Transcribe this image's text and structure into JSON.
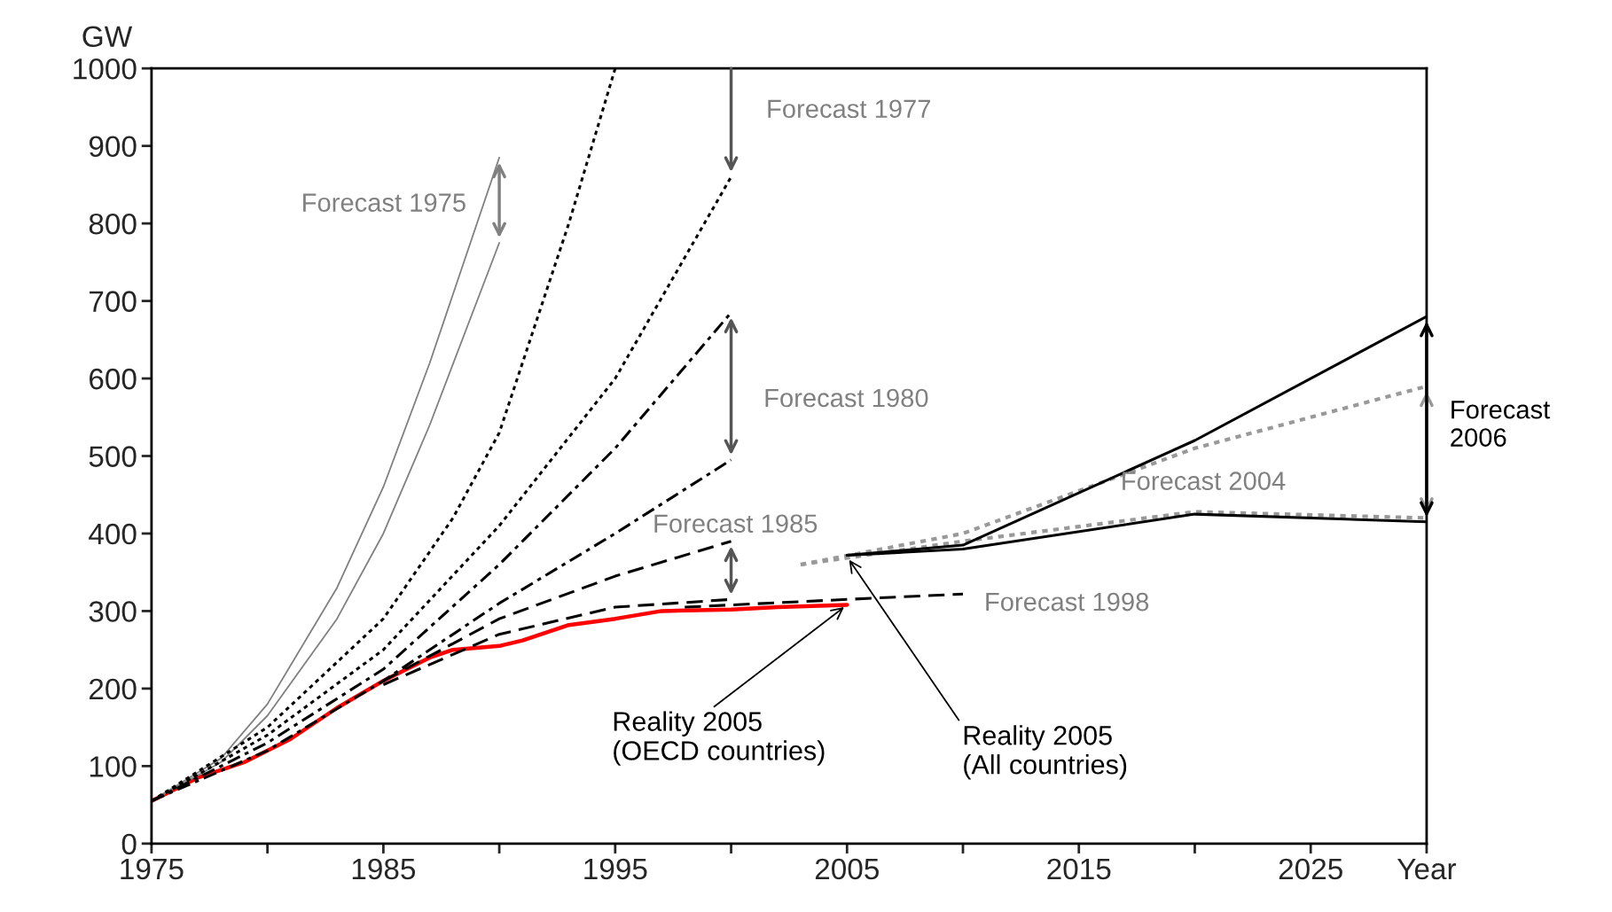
{
  "chart_data": {
    "type": "line",
    "ylabel": "GW",
    "xlim": [
      1975,
      2030
    ],
    "xticks": [
      1975,
      {
        "value": 1980,
        "label": null
      },
      1985,
      {
        "value": 1990,
        "label": null
      },
      1995,
      {
        "value": 2000,
        "label": null
      },
      2005,
      {
        "value": 2010,
        "label": null
      },
      2015,
      {
        "value": 2020,
        "label": null
      },
      2025,
      {
        "value": 2030,
        "label": "Year"
      }
    ],
    "ylim": [
      0,
      1000
    ],
    "yticks": [
      0,
      100,
      200,
      300,
      400,
      500,
      600,
      700,
      800,
      900,
      1000
    ],
    "grid": false,
    "series": [
      {
        "color": "#ff0000",
        "line_style": "solid",
        "x": [
          1975,
          1977,
          1979,
          1981,
          1983,
          1985,
          1987,
          1988,
          1990,
          1991,
          1993,
          1995,
          1997,
          2000,
          2002,
          2005
        ],
        "values": [
          55,
          85,
          105,
          135,
          175,
          210,
          240,
          250,
          255,
          262,
          282,
          290,
          300,
          302,
          305,
          308
        ]
      },
      {
        "color": "#808080",
        "line_style": "solid",
        "x": [
          1975,
          1978,
          1980,
          1983,
          1985,
          1987,
          1990
        ],
        "values": [
          55,
          110,
          180,
          330,
          460,
          620,
          885
        ]
      },
      {
        "color": "#808080",
        "line_style": "solid",
        "x": [
          1975,
          1978,
          1980,
          1983,
          1985,
          1987,
          1990
        ],
        "values": [
          55,
          105,
          165,
          290,
          400,
          540,
          775
        ]
      },
      {
        "color": "#000000",
        "line_style": "dotted",
        "x": [
          1975,
          1980,
          1985,
          1988,
          1990,
          1993,
          1995
        ],
        "values": [
          55,
          150,
          290,
          420,
          530,
          800,
          1000
        ]
      },
      {
        "color": "#000000",
        "line_style": "dotted",
        "x": [
          1975,
          1980,
          1985,
          1990,
          1995,
          2000
        ],
        "values": [
          55,
          140,
          250,
          410,
          600,
          860
        ]
      },
      {
        "color": "#000000",
        "line_style": "dashdot",
        "x": [
          1975,
          1980,
          1985,
          1990,
          1995,
          2000
        ],
        "values": [
          55,
          130,
          225,
          360,
          510,
          685
        ]
      },
      {
        "color": "#000000",
        "line_style": "dashdot",
        "x": [
          1975,
          1980,
          1985,
          1990,
          1995,
          2000
        ],
        "values": [
          55,
          120,
          210,
          310,
          400,
          495
        ]
      },
      {
        "color": "#000000",
        "line_style": "dashed",
        "x": [
          1985,
          1990,
          1995,
          2000
        ],
        "values": [
          210,
          290,
          345,
          390
        ]
      },
      {
        "color": "#000000",
        "line_style": "dashed",
        "x": [
          1985,
          1990,
          1995,
          2000
        ],
        "values": [
          205,
          270,
          305,
          315
        ]
      },
      {
        "color": "#000000",
        "line_style": "dashed",
        "x": [
          1998,
          2005,
          2010
        ],
        "values": [
          305,
          315,
          322
        ]
      },
      {
        "color": "#999999",
        "line_style": "dotted",
        "x": [
          2003,
          2010,
          2020,
          2030
        ],
        "values": [
          360,
          400,
          510,
          590
        ]
      },
      {
        "color": "#999999",
        "line_style": "dotted",
        "x": [
          2003,
          2010,
          2020,
          2030
        ],
        "values": [
          360,
          390,
          428,
          420
        ]
      },
      {
        "color": "#000000",
        "line_style": "solid",
        "x": [
          2005,
          2010,
          2020,
          2030
        ],
        "values": [
          372,
          385,
          520,
          680
        ]
      },
      {
        "color": "#000000",
        "line_style": "solid",
        "x": [
          2005,
          2010,
          2020,
          2030
        ],
        "values": [
          372,
          380,
          425,
          415
        ]
      }
    ],
    "annotations": [
      "Forecast 1975",
      "Forecast 1977",
      "Forecast 1980",
      "Forecast 1985",
      "Forecast 1998",
      "Forecast 2004",
      "Forecast\n2006",
      {
        "text": "Reality 2005\n(OECD countries)",
        "x": 2005,
        "y": 308
      },
      {
        "text": "Reality 2005\n(All countries)",
        "x": 2005,
        "y": 370
      }
    ]
  }
}
